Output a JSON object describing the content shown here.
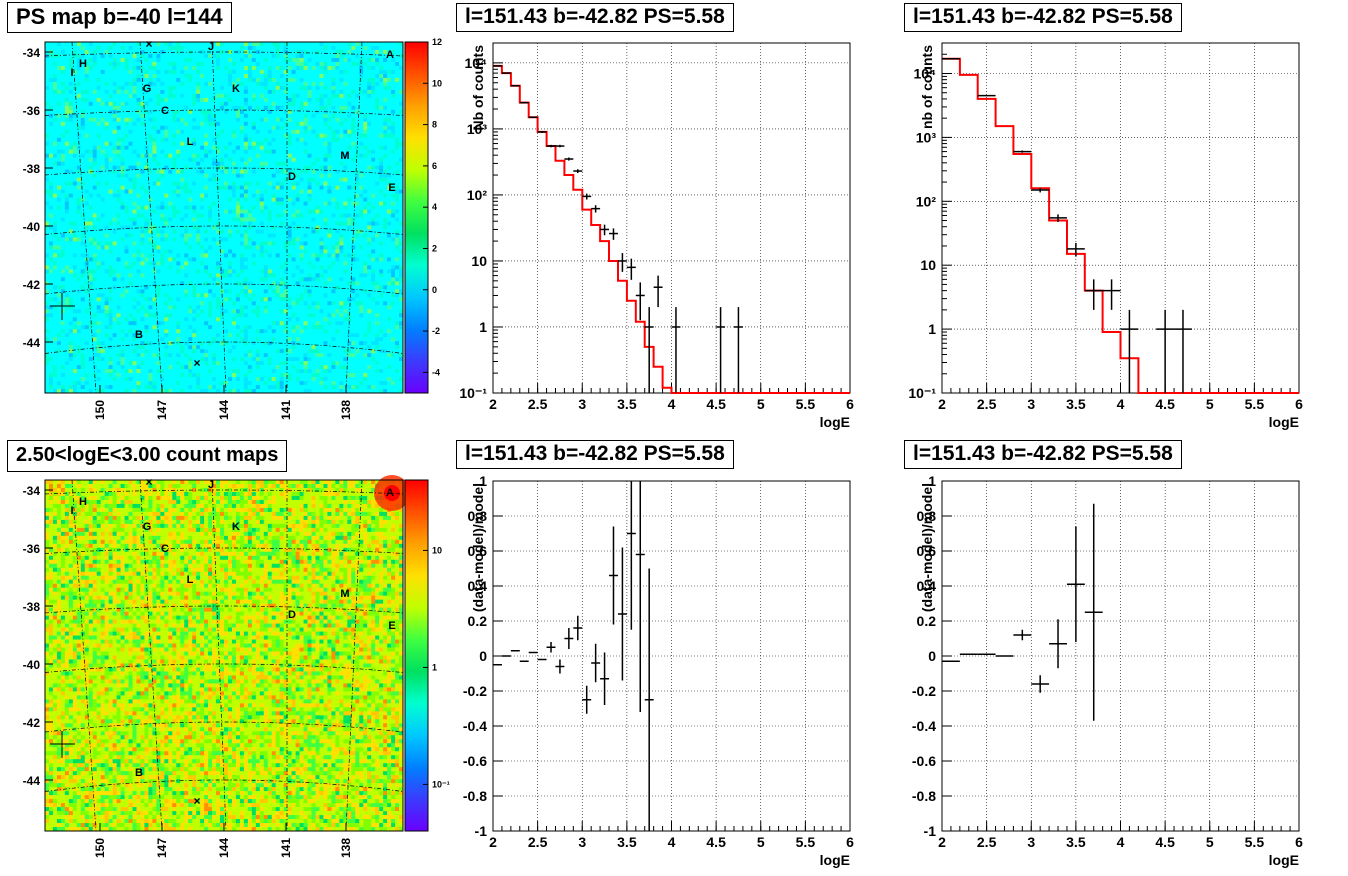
{
  "maps": [
    {
      "title": "PS map b=-40 l=144",
      "palette": "cyan",
      "ytick_labels": [
        "-34",
        "-36",
        "-38",
        "-40",
        "-42",
        "-44"
      ],
      "yticks": [
        -34,
        -36,
        -38,
        -40,
        -42,
        -44
      ],
      "xtick_labels": [
        "150",
        "147",
        "144",
        "141",
        "138"
      ],
      "xticks": [
        150,
        147,
        144,
        141,
        138
      ],
      "colorbar_labels": [
        "12",
        "10",
        "8",
        "6",
        "4",
        "2",
        "0",
        "-2",
        "-4"
      ],
      "colorbar_values": [
        12,
        10,
        8,
        6,
        4,
        2,
        0,
        -2,
        -4
      ],
      "colorbar_range": [
        -5,
        12
      ],
      "colorbar_scale": "linear",
      "source_labels": [
        "A",
        "B",
        "C",
        "D",
        "E",
        "G",
        "H",
        "I",
        "J",
        "K",
        "L",
        "M"
      ]
    },
    {
      "title": "2.50<logE<3.00 count maps",
      "palette": "yellow",
      "ytick_labels": [
        "-34",
        "-36",
        "-38",
        "-40",
        "-42",
        "-44"
      ],
      "yticks": [
        -34,
        -36,
        -38,
        -40,
        -42,
        -44
      ],
      "xtick_labels": [
        "150",
        "147",
        "144",
        "141",
        "138"
      ],
      "xticks": [
        150,
        147,
        144,
        141,
        138
      ],
      "colorbar_labels": [
        "10",
        "1",
        "10⁻¹"
      ],
      "colorbar_values": [
        10,
        1,
        0.1
      ],
      "colorbar_range": [
        0.04,
        40
      ],
      "colorbar_scale": "log",
      "source_labels": [
        "A",
        "B",
        "C",
        "D",
        "E",
        "G",
        "H",
        "I",
        "J",
        "K",
        "L",
        "M"
      ]
    }
  ],
  "chart_data": [
    {
      "type": "line",
      "title": "l=151.43 b=-42.82 PS=5.58",
      "xlabel": "logE",
      "ylabel": "Nb of counts",
      "yscale": "log",
      "xlim": [
        2,
        6
      ],
      "ylim": [
        0.1,
        20000
      ],
      "grid": true,
      "xtick_labels": [
        "2",
        "2.5",
        "3",
        "3.5",
        "4",
        "4.5",
        "5",
        "5.5",
        "6"
      ],
      "ytick_labels": [
        "10⁴",
        "10³",
        "10²",
        "10",
        "1",
        "10⁻¹"
      ],
      "model_bin_width": 0.1,
      "model": [
        9000,
        7000,
        4500,
        2500,
        1500,
        900,
        550,
        330,
        200,
        120,
        60,
        35,
        20,
        10,
        5,
        2.5,
        1.2,
        0.5,
        0.25,
        0.12,
        0.08,
        0.05,
        0.04,
        0.03,
        0.02,
        0.01,
        0.01,
        0.01,
        0.01,
        0.01,
        0.01,
        0.01,
        0.01,
        0.01,
        0.01,
        0.01,
        0.01,
        0.01,
        0.01,
        0.01
      ],
      "data_points": [
        {
          "x": 2.05,
          "y": 9000
        },
        {
          "x": 2.15,
          "y": 7000
        },
        {
          "x": 2.25,
          "y": 4500
        },
        {
          "x": 2.35,
          "y": 2500
        },
        {
          "x": 2.45,
          "y": 1500
        },
        {
          "x": 2.55,
          "y": 900
        },
        {
          "x": 2.65,
          "y": 550
        },
        {
          "x": 2.75,
          "y": 550
        },
        {
          "x": 2.85,
          "y": 350
        },
        {
          "x": 2.95,
          "y": 230
        },
        {
          "x": 3.05,
          "y": 95
        },
        {
          "x": 3.15,
          "y": 62
        },
        {
          "x": 3.25,
          "y": 30
        },
        {
          "x": 3.35,
          "y": 26
        },
        {
          "x": 3.45,
          "y": 10
        },
        {
          "x": 3.55,
          "y": 8
        },
        {
          "x": 3.65,
          "y": 3
        },
        {
          "x": 3.75,
          "y": 1
        },
        {
          "x": 3.85,
          "y": 4
        },
        {
          "x": 4.05,
          "y": 1
        },
        {
          "x": 4.55,
          "y": 1
        },
        {
          "x": 4.75,
          "y": 1
        }
      ]
    },
    {
      "type": "line",
      "title": "l=151.43 b=-42.82 PS=5.58",
      "xlabel": "logE",
      "ylabel": "nb of counts",
      "yscale": "log",
      "xlim": [
        2,
        6
      ],
      "ylim": [
        0.1,
        30000
      ],
      "grid": true,
      "xtick_labels": [
        "2",
        "2.5",
        "3",
        "3.5",
        "4",
        "4.5",
        "5",
        "5.5",
        "6"
      ],
      "ytick_labels": [
        "10⁴",
        "10³",
        "10²",
        "10",
        "1",
        "10⁻¹"
      ],
      "model_bin_width": 0.2,
      "model": [
        17000,
        9500,
        4000,
        1500,
        550,
        160,
        50,
        15,
        4,
        0.9,
        0.35,
        0.02,
        0.01,
        0.01,
        0.01,
        0.01,
        0.01,
        0.01,
        0.01,
        0.01
      ],
      "data_points": [
        {
          "x": 2.1,
          "y": 17000
        },
        {
          "x": 2.5,
          "y": 4500
        },
        {
          "x": 2.9,
          "y": 600
        },
        {
          "x": 3.1,
          "y": 150
        },
        {
          "x": 3.3,
          "y": 55
        },
        {
          "x": 3.5,
          "y": 18
        },
        {
          "x": 3.7,
          "y": 4
        },
        {
          "x": 3.9,
          "y": 4
        },
        {
          "x": 4.1,
          "y": 1
        },
        {
          "x": 4.5,
          "y": 1
        },
        {
          "x": 4.7,
          "y": 1
        }
      ]
    },
    {
      "type": "scatter",
      "title": "l=151.43 b=-42.82 PS=5.58",
      "xlabel": "logE",
      "ylabel": "(data-model)/model",
      "xlim": [
        2,
        6
      ],
      "ylim": [
        -1,
        1
      ],
      "grid": true,
      "xtick_labels": [
        "2",
        "2.5",
        "3",
        "3.5",
        "4",
        "4.5",
        "5",
        "5.5",
        "6"
      ],
      "ytick_labels": [
        "1",
        "0.8",
        "0.6",
        "0.4",
        "0.2",
        "0",
        "-0.2",
        "-0.4",
        "-0.6",
        "-0.8",
        "-1"
      ],
      "bin_width": 0.1,
      "points": [
        {
          "x": 2.05,
          "y": -0.05,
          "err": 0.0
        },
        {
          "x": 2.15,
          "y": 0.0,
          "err": 0.0
        },
        {
          "x": 2.25,
          "y": 0.03,
          "err": 0.0
        },
        {
          "x": 2.35,
          "y": -0.03,
          "err": 0.0
        },
        {
          "x": 2.45,
          "y": 0.02,
          "err": 0.0
        },
        {
          "x": 2.55,
          "y": -0.02,
          "err": 0.0
        },
        {
          "x": 2.65,
          "y": 0.05,
          "err": 0.03
        },
        {
          "x": 2.75,
          "y": -0.06,
          "err": 0.04
        },
        {
          "x": 2.85,
          "y": 0.1,
          "err": 0.06
        },
        {
          "x": 2.95,
          "y": 0.16,
          "err": 0.07
        },
        {
          "x": 3.05,
          "y": -0.25,
          "err": 0.08
        },
        {
          "x": 3.15,
          "y": -0.04,
          "err": 0.11
        },
        {
          "x": 3.25,
          "y": -0.13,
          "err": 0.15
        },
        {
          "x": 3.35,
          "y": 0.46,
          "err": 0.28
        },
        {
          "x": 3.45,
          "y": 0.24,
          "err": 0.38
        },
        {
          "x": 3.55,
          "y": 0.7,
          "err": 0.55
        },
        {
          "x": 3.65,
          "y": 0.58,
          "err": 0.9
        },
        {
          "x": 3.75,
          "y": -0.25,
          "err": 0.75
        }
      ]
    },
    {
      "type": "scatter",
      "title": "l=151.43 b=-42.82 PS=5.58",
      "xlabel": "logE",
      "ylabel": "(data-model)/model",
      "xlim": [
        2,
        6
      ],
      "ylim": [
        -1,
        1
      ],
      "grid": true,
      "xtick_labels": [
        "2",
        "2.5",
        "3",
        "3.5",
        "4",
        "4.5",
        "5",
        "5.5",
        "6"
      ],
      "ytick_labels": [
        "1",
        "0.8",
        "0.6",
        "0.4",
        "0.2",
        "0",
        "-0.2",
        "-0.4",
        "-0.6",
        "-0.8",
        "-1"
      ],
      "bin_width": 0.2,
      "points": [
        {
          "x": 2.1,
          "y": -0.03,
          "err": 0.0
        },
        {
          "x": 2.3,
          "y": 0.01,
          "err": 0.0
        },
        {
          "x": 2.5,
          "y": 0.01,
          "err": 0.0
        },
        {
          "x": 2.7,
          "y": 0.0,
          "err": 0.0
        },
        {
          "x": 2.9,
          "y": 0.12,
          "err": 0.03
        },
        {
          "x": 3.1,
          "y": -0.16,
          "err": 0.05
        },
        {
          "x": 3.3,
          "y": 0.07,
          "err": 0.14
        },
        {
          "x": 3.5,
          "y": 0.41,
          "err": 0.33
        },
        {
          "x": 3.7,
          "y": 0.25,
          "err": 0.62
        }
      ]
    }
  ]
}
